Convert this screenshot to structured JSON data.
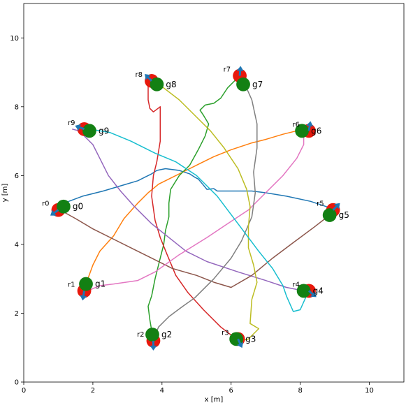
{
  "chart_data": {
    "type": "line",
    "xlabel": "x [m]",
    "ylabel": "y [m]",
    "xlim": [
      0,
      11
    ],
    "ylim": [
      0,
      11
    ],
    "xticks": [
      0,
      2,
      4,
      6,
      8,
      10
    ],
    "yticks": [
      0,
      2,
      4,
      6,
      8,
      10
    ],
    "grid": false,
    "colors": {
      "robot": "#e8180c",
      "goal": "#138013",
      "arrow": "#1f77b4"
    },
    "agents": [
      {
        "robot_label": "r0",
        "goal_label": "g0",
        "start": [
          1.0,
          5.0
        ],
        "goal": [
          1.15,
          5.1
        ],
        "heading": 215,
        "color": "#1f77b4",
        "path": [
          [
            1.0,
            5.0
          ],
          [
            1.3,
            5.25
          ],
          [
            1.7,
            5.4
          ],
          [
            2.3,
            5.55
          ],
          [
            2.8,
            5.7
          ],
          [
            3.3,
            5.85
          ],
          [
            3.5,
            5.95
          ],
          [
            3.7,
            6.05
          ],
          [
            3.85,
            6.15
          ],
          [
            4.1,
            6.2
          ],
          [
            4.5,
            6.15
          ],
          [
            4.8,
            6.05
          ],
          [
            4.95,
            5.95
          ],
          [
            5.05,
            5.9
          ],
          [
            5.2,
            5.72
          ],
          [
            5.3,
            5.6
          ],
          [
            5.5,
            5.62
          ],
          [
            5.6,
            5.55
          ],
          [
            6.0,
            5.55
          ],
          [
            6.6,
            5.55
          ],
          [
            7.0,
            5.5
          ],
          [
            7.6,
            5.4
          ],
          [
            8.3,
            5.25
          ],
          [
            8.9,
            5.05
          ]
        ]
      },
      {
        "robot_label": "r1",
        "goal_label": "g1",
        "start": [
          1.75,
          2.65
        ],
        "goal": [
          1.8,
          2.85
        ],
        "heading": 260,
        "color": "#ff7f0e",
        "path": [
          [
            1.8,
            2.85
          ],
          [
            2.0,
            3.4
          ],
          [
            2.2,
            3.8
          ],
          [
            2.6,
            4.25
          ],
          [
            2.9,
            4.75
          ],
          [
            3.3,
            5.2
          ],
          [
            3.6,
            5.5
          ],
          [
            3.9,
            5.75
          ],
          [
            4.3,
            5.95
          ],
          [
            4.7,
            6.15
          ],
          [
            5.1,
            6.35
          ],
          [
            5.5,
            6.55
          ],
          [
            6.0,
            6.75
          ],
          [
            6.6,
            6.95
          ],
          [
            7.0,
            7.05
          ],
          [
            7.5,
            7.2
          ],
          [
            7.9,
            7.3
          ],
          [
            8.1,
            7.3
          ]
        ]
      },
      {
        "robot_label": "r2",
        "goal_label": "g2",
        "start": [
          3.75,
          1.2
        ],
        "goal": [
          3.72,
          1.38
        ],
        "heading": 270,
        "color": "#2ca02c",
        "path": [
          [
            3.72,
            1.38
          ],
          [
            3.65,
            1.8
          ],
          [
            3.6,
            2.2
          ],
          [
            3.7,
            2.5
          ],
          [
            3.8,
            3.0
          ],
          [
            3.95,
            3.6
          ],
          [
            4.05,
            4.0
          ],
          [
            4.1,
            4.4
          ],
          [
            4.2,
            4.8
          ],
          [
            4.2,
            5.2
          ],
          [
            4.25,
            5.6
          ],
          [
            4.5,
            6.0
          ],
          [
            4.8,
            6.3
          ],
          [
            5.05,
            6.75
          ],
          [
            5.25,
            7.15
          ],
          [
            5.35,
            7.5
          ],
          [
            5.2,
            7.75
          ],
          [
            5.1,
            7.9
          ],
          [
            5.25,
            8.05
          ],
          [
            5.5,
            8.1
          ],
          [
            5.7,
            8.25
          ],
          [
            5.9,
            8.55
          ],
          [
            6.15,
            8.8
          ],
          [
            6.35,
            8.95
          ]
        ]
      },
      {
        "robot_label": "r3",
        "goal_label": "g3",
        "start": [
          6.2,
          1.25
        ],
        "goal": [
          6.15,
          1.25
        ],
        "heading": 295,
        "color": "#d62728",
        "path": [
          [
            6.15,
            1.25
          ],
          [
            5.7,
            1.6
          ],
          [
            5.2,
            2.1
          ],
          [
            4.75,
            2.6
          ],
          [
            4.4,
            3.1
          ],
          [
            4.15,
            3.7
          ],
          [
            3.95,
            4.2
          ],
          [
            3.8,
            4.7
          ],
          [
            3.7,
            5.4
          ],
          [
            3.75,
            6.0
          ],
          [
            3.85,
            6.4
          ],
          [
            3.95,
            7.0
          ],
          [
            3.95,
            7.5
          ],
          [
            3.95,
            8.0
          ],
          [
            3.75,
            7.85
          ],
          [
            3.65,
            7.95
          ],
          [
            3.6,
            8.2
          ],
          [
            3.6,
            8.5
          ],
          [
            3.6,
            8.7
          ]
        ]
      },
      {
        "robot_label": "r4",
        "goal_label": "g4",
        "start": [
          8.25,
          2.65
        ],
        "goal": [
          8.1,
          2.65
        ],
        "heading": 320,
        "color": "#9467bd",
        "path": [
          [
            8.1,
            2.65
          ],
          [
            7.6,
            2.75
          ],
          [
            7.0,
            2.95
          ],
          [
            6.2,
            3.2
          ],
          [
            5.3,
            3.5
          ],
          [
            4.7,
            3.8
          ],
          [
            4.2,
            4.2
          ],
          [
            3.7,
            4.6
          ],
          [
            3.2,
            5.1
          ],
          [
            2.8,
            5.55
          ],
          [
            2.45,
            6.0
          ],
          [
            2.2,
            6.5
          ],
          [
            2.0,
            6.9
          ],
          [
            1.6,
            7.3
          ],
          [
            1.4,
            7.35
          ]
        ]
      },
      {
        "robot_label": "r5",
        "goal_label": "g5",
        "start": [
          8.95,
          5.0
        ],
        "goal": [
          8.85,
          4.85
        ],
        "heading": 45,
        "color": "#8c564b",
        "path": [
          [
            8.85,
            4.85
          ],
          [
            8.4,
            4.5
          ],
          [
            7.8,
            4.05
          ],
          [
            7.2,
            3.6
          ],
          [
            6.6,
            3.1
          ],
          [
            6.0,
            2.75
          ],
          [
            5.5,
            2.9
          ],
          [
            5.0,
            3.1
          ],
          [
            4.3,
            3.3
          ],
          [
            3.7,
            3.6
          ],
          [
            3.2,
            3.85
          ],
          [
            2.6,
            4.15
          ],
          [
            2.0,
            4.45
          ],
          [
            1.5,
            4.75
          ],
          [
            1.05,
            5.0
          ]
        ]
      },
      {
        "robot_label": "r6",
        "goal_label": "g6",
        "start": [
          8.25,
          7.3
        ],
        "goal": [
          8.05,
          7.3
        ],
        "heading": 80,
        "color": "#e377c2",
        "path": [
          [
            8.1,
            7.2
          ],
          [
            8.1,
            6.9
          ],
          [
            7.9,
            6.5
          ],
          [
            7.5,
            6.0
          ],
          [
            7.0,
            5.5
          ],
          [
            6.5,
            5.0
          ],
          [
            5.9,
            4.6
          ],
          [
            5.3,
            4.2
          ],
          [
            4.5,
            3.7
          ],
          [
            3.8,
            3.2
          ],
          [
            3.3,
            2.95
          ],
          [
            2.6,
            2.85
          ],
          [
            2.2,
            2.8
          ],
          [
            1.85,
            2.65
          ]
        ]
      },
      {
        "robot_label": "r7",
        "goal_label": "g7",
        "start": [
          6.25,
          8.9
        ],
        "goal": [
          6.35,
          8.65
        ],
        "heading": 85,
        "color": "#7f7f7f",
        "path": [
          [
            6.4,
            8.65
          ],
          [
            6.6,
            8.2
          ],
          [
            6.75,
            7.5
          ],
          [
            6.75,
            6.8
          ],
          [
            6.65,
            6.1
          ],
          [
            6.7,
            5.5
          ],
          [
            6.6,
            4.8
          ],
          [
            6.3,
            4.1
          ],
          [
            6.0,
            3.6
          ],
          [
            5.5,
            3.0
          ],
          [
            4.95,
            2.45
          ],
          [
            4.6,
            2.2
          ],
          [
            4.2,
            1.9
          ],
          [
            3.9,
            1.6
          ],
          [
            3.75,
            1.25
          ]
        ]
      },
      {
        "robot_label": "r8",
        "goal_label": "g8",
        "start": [
          3.7,
          8.75
        ],
        "goal": [
          3.85,
          8.65
        ],
        "heading": 135,
        "color": "#bcbd22",
        "path": [
          [
            3.85,
            8.7
          ],
          [
            4.5,
            8.2
          ],
          [
            5.0,
            7.7
          ],
          [
            5.4,
            7.3
          ],
          [
            5.8,
            6.8
          ],
          [
            6.2,
            6.2
          ],
          [
            6.45,
            5.6
          ],
          [
            6.55,
            5.1
          ],
          [
            6.5,
            4.5
          ],
          [
            6.5,
            3.9
          ],
          [
            6.65,
            3.4
          ],
          [
            6.75,
            2.9
          ],
          [
            6.6,
            2.4
          ],
          [
            6.55,
            1.7
          ],
          [
            6.8,
            1.55
          ],
          [
            6.65,
            1.4
          ],
          [
            6.5,
            1.25
          ],
          [
            6.3,
            1.2
          ]
        ]
      },
      {
        "robot_label": "r9",
        "goal_label": "g9",
        "start": [
          1.75,
          7.35
        ],
        "goal": [
          1.9,
          7.3
        ],
        "heading": 160,
        "color": "#17becf",
        "path": [
          [
            1.9,
            7.35
          ],
          [
            2.5,
            7.25
          ],
          [
            3.1,
            7.0
          ],
          [
            3.8,
            6.65
          ],
          [
            4.4,
            6.4
          ],
          [
            5.0,
            6.0
          ],
          [
            5.6,
            5.4
          ],
          [
            6.2,
            4.6
          ],
          [
            6.8,
            3.8
          ],
          [
            7.2,
            3.3
          ],
          [
            7.5,
            2.8
          ],
          [
            7.6,
            2.5
          ],
          [
            7.8,
            2.05
          ],
          [
            8.0,
            2.1
          ],
          [
            8.2,
            2.55
          ],
          [
            8.35,
            2.7
          ]
        ]
      }
    ]
  }
}
